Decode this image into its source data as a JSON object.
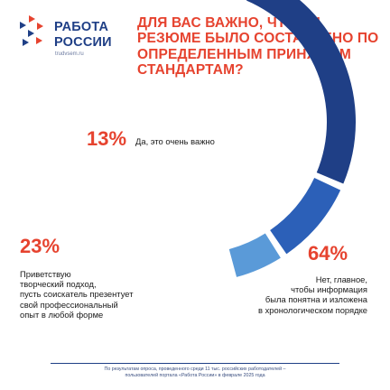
{
  "logo": {
    "line1": "РАБОТА",
    "line2": "РОССИИ",
    "site": "trudvsem.ru",
    "mark_colors": [
      "#e6432f",
      "#1f3f86"
    ]
  },
  "headline": "ДЛЯ ВАС ВАЖНО, ЧТОБЫ РЕЗЮМЕ БЫЛО СОСТАВЛЕНО ПО ОПРЕДЕЛЕННЫМ ПРИНЯТЫМ СТАНДАРТАМ?",
  "chart_data": {
    "type": "pie",
    "style": "partial-ring",
    "slices": [
      {
        "value": 13,
        "percent_label": "13%",
        "label": "Да, это очень важно",
        "color": "#5a9ad8"
      },
      {
        "value": 23,
        "percent_label": "23%",
        "label": "Приветствую творческий подход, пусть соискатель презентует свой профессиональный опыт в любой форме",
        "label_lines": [
          "Приветствую",
          "творческий подход,",
          "пусть соискатель презентует",
          "свой профессиональный",
          "опыт в любой форме"
        ],
        "color": "#2c60b8"
      },
      {
        "value": 64,
        "percent_label": "64%",
        "label": "Нет, главное, чтобы информация была понятна и изложена в хронологическом порядке",
        "label_lines": [
          "Нет, главное,",
          "чтобы информация",
          "была понятна и изложена",
          "в хронологическом порядке"
        ],
        "color": "#1f3f86"
      }
    ]
  },
  "footer": {
    "line1": "По результатам опроса, проведенного среди 11 тыс. российских работодателей –",
    "line2": "пользователей портала «Работа России» в феврале 2025 года"
  }
}
